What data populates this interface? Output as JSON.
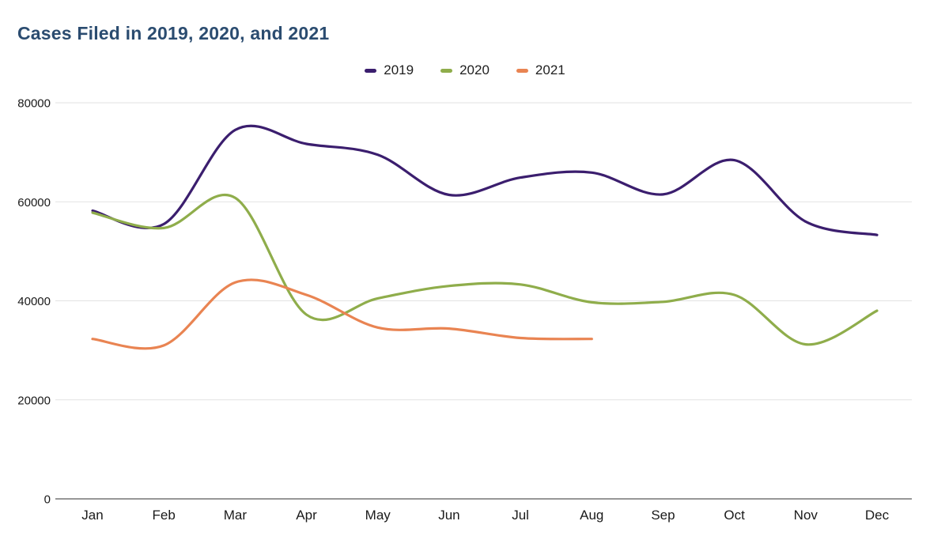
{
  "header": {
    "title": "Cases Filed in 2019, 2020, and 2021",
    "title_color": "#2b4c70"
  },
  "chart_data": {
    "type": "line",
    "title": "Cases Filed in 2019, 2020, and 2021",
    "curve": "smooth",
    "categories": [
      "Jan",
      "Feb",
      "Mar",
      "Apr",
      "May",
      "Jun",
      "Jul",
      "Aug",
      "Sep",
      "Oct",
      "Nov",
      "Dec"
    ],
    "series": [
      {
        "name": "2019",
        "color": "#3b1e6e",
        "values": [
          58200,
          55500,
          74500,
          71700,
          69500,
          61400,
          64900,
          65900,
          61500,
          68400,
          56000,
          53300
        ]
      },
      {
        "name": "2020",
        "color": "#8fad4b",
        "values": [
          57800,
          54700,
          60800,
          37200,
          40500,
          43000,
          43300,
          39700,
          39800,
          41200,
          31200,
          38000
        ]
      },
      {
        "name": "2021",
        "color": "#e98452",
        "values": [
          32300,
          31000,
          43700,
          41200,
          34600,
          34400,
          32500,
          32300,
          null,
          null,
          null,
          null
        ]
      }
    ],
    "xlabel": "",
    "ylabel": "",
    "ylim": [
      0,
      80000
    ],
    "yticks": [
      0,
      20000,
      40000,
      60000,
      80000
    ],
    "grid": "horizontal-only",
    "gridline_color": "#e2e2e2",
    "baseline_color": "#757575",
    "axis_text_color": "#1a1a1a",
    "legend_position": "top-center",
    "background_color": "#ffffff"
  }
}
